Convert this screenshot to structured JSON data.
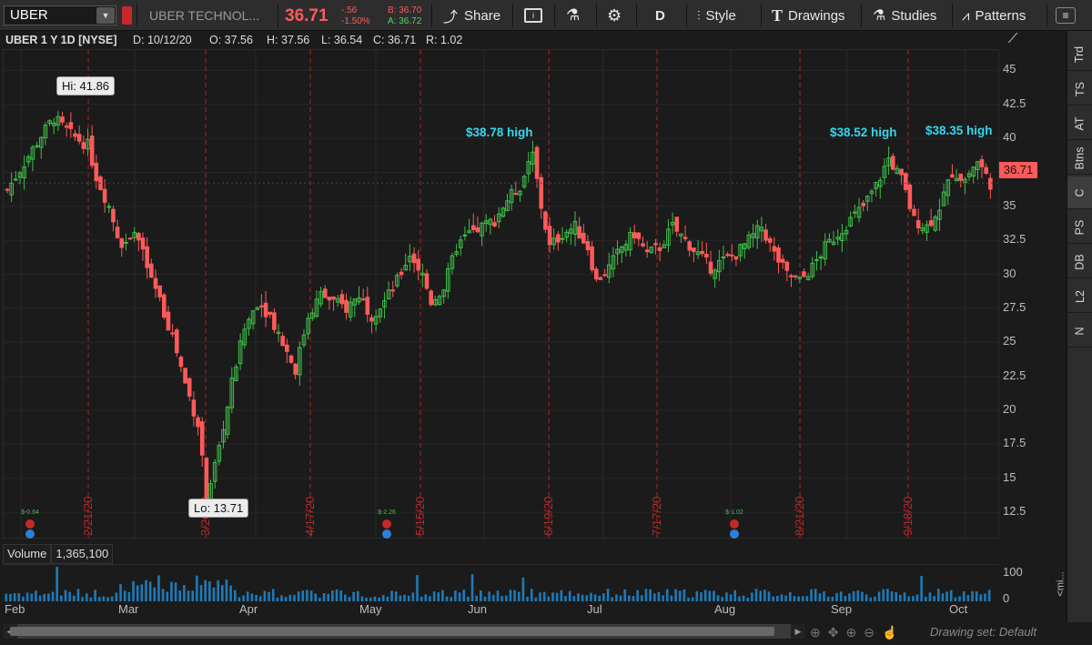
{
  "toolbar": {
    "symbol": "UBER",
    "company": "UBER TECHNOL...",
    "last": "36.71",
    "change": "-.56",
    "change_pct": "-1.50%",
    "bid": "B: 36.70",
    "ask": "A: 36.72",
    "share": "Share",
    "aggregation": "D",
    "style": "Style",
    "drawings": "Drawings",
    "studies": "Studies",
    "patterns": "Patterns"
  },
  "header": {
    "title": "UBER 1 Y 1D [NYSE]",
    "date": "D: 10/12/20",
    "open": "O: 37.56",
    "high": "H: 37.56",
    "low": "L: 36.54",
    "close": "C: 36.71",
    "range": "R: 1.02"
  },
  "annotations": {
    "hi": "Hi: 41.86",
    "lo": "Lo: 13.71",
    "high1": "$38.78 high",
    "high2": "$38.52 high",
    "high3": "$38.35 high"
  },
  "price_tag": "36.71",
  "yaxis_labels": [
    "45",
    "42.5",
    "40",
    "37.5",
    "35",
    "32.5",
    "30",
    "27.5",
    "25",
    "22.5",
    "20",
    "17.5",
    "15",
    "12.5"
  ],
  "expiry_labels": [
    "2/21/20",
    "3/20/20",
    "4/17/20",
    "5/15/20",
    "6/19/20",
    "7/17/20",
    "8/21/20",
    "9/18/20"
  ],
  "dividend_labels": [
    "$-0.64",
    "$-2.26",
    "$-1.02"
  ],
  "month_labels": [
    "Feb",
    "Mar",
    "Apr",
    "May",
    "Jun",
    "Jul",
    "Aug",
    "Sep",
    "Oct"
  ],
  "volume": {
    "label": "Volume",
    "value": "1,365,100",
    "axis_top": "100",
    "axis_bottom": "0",
    "unit": "<mi..."
  },
  "sidebar_tabs": [
    "Trd",
    "TS",
    "AT",
    "Btns",
    "C",
    "PS",
    "DB",
    "L2",
    "N"
  ],
  "drawing_set": "Drawing set: Default",
  "colors": {
    "up": "#3fbf4a",
    "down": "#ff5a5a",
    "annotation": "#35d7ee",
    "expiry": "#b02020",
    "volume": "#1f7ab8"
  },
  "chart_data": {
    "type": "candlestick",
    "title": "UBER 1 Y 1D [NYSE]",
    "ylim": [
      10.5,
      46.5
    ],
    "x": [
      "Feb",
      "Mar",
      "Apr",
      "May",
      "Jun",
      "Jul",
      "Aug",
      "Sep",
      "Oct"
    ],
    "series": [
      {
        "name": "UBER",
        "close_points": [
          [
            0,
            36.2
          ],
          [
            8,
            40.2
          ],
          [
            11,
            41.5
          ],
          [
            15,
            40.3
          ],
          [
            19,
            39.5
          ],
          [
            21,
            37.2
          ],
          [
            24,
            35.0
          ],
          [
            27,
            32.0
          ],
          [
            30,
            33.5
          ],
          [
            33,
            30.5
          ],
          [
            36,
            28.0
          ],
          [
            39,
            25.5
          ],
          [
            42,
            22.0
          ],
          [
            45,
            19.0
          ],
          [
            47,
            13.71
          ],
          [
            50,
            17.0
          ],
          [
            53,
            22.0
          ],
          [
            56,
            26.0
          ],
          [
            59,
            28.0
          ],
          [
            62,
            27.0
          ],
          [
            65,
            25.0
          ],
          [
            68,
            23.0
          ],
          [
            71,
            27.0
          ],
          [
            74,
            28.5
          ],
          [
            77,
            28.0
          ],
          [
            80,
            27.5
          ],
          [
            83,
            28.5
          ],
          [
            86,
            27.0
          ],
          [
            89,
            28.0
          ],
          [
            92,
            29.5
          ],
          [
            95,
            31.5
          ],
          [
            98,
            30.0
          ],
          [
            100,
            28.0
          ],
          [
            103,
            29.0
          ],
          [
            106,
            32.0
          ],
          [
            109,
            33.0
          ],
          [
            112,
            33.5
          ],
          [
            115,
            34.0
          ],
          [
            118,
            35.5
          ],
          [
            121,
            36.5
          ],
          [
            124,
            38.78
          ],
          [
            126,
            35.0
          ],
          [
            128,
            32.0
          ],
          [
            131,
            33.0
          ],
          [
            134,
            33.5
          ],
          [
            137,
            32.0
          ],
          [
            139,
            29.5
          ],
          [
            142,
            30.5
          ],
          [
            145,
            32.0
          ],
          [
            148,
            33.0
          ],
          [
            151,
            31.5
          ],
          [
            154,
            32.0
          ],
          [
            157,
            33.5
          ],
          [
            160,
            32.5
          ],
          [
            163,
            31.5
          ],
          [
            166,
            30.5
          ],
          [
            169,
            31.0
          ],
          [
            172,
            31.5
          ],
          [
            175,
            32.5
          ],
          [
            178,
            33.5
          ],
          [
            181,
            31.5
          ],
          [
            184,
            30.0
          ],
          [
            187,
            29.5
          ],
          [
            190,
            30.5
          ],
          [
            193,
            32.0
          ],
          [
            196,
            33.0
          ],
          [
            199,
            34.0
          ],
          [
            202,
            35.0
          ],
          [
            205,
            36.5
          ],
          [
            208,
            38.52
          ],
          [
            211,
            37.0
          ],
          [
            214,
            34.0
          ],
          [
            217,
            33.5
          ],
          [
            220,
            35.0
          ],
          [
            223,
            37.5
          ],
          [
            226,
            37.0
          ],
          [
            229,
            38.35
          ],
          [
            232,
            36.71
          ]
        ]
      }
    ],
    "high": 41.86,
    "low": 13.71,
    "last": 36.71,
    "volume_axis": [
      0,
      100
    ]
  }
}
